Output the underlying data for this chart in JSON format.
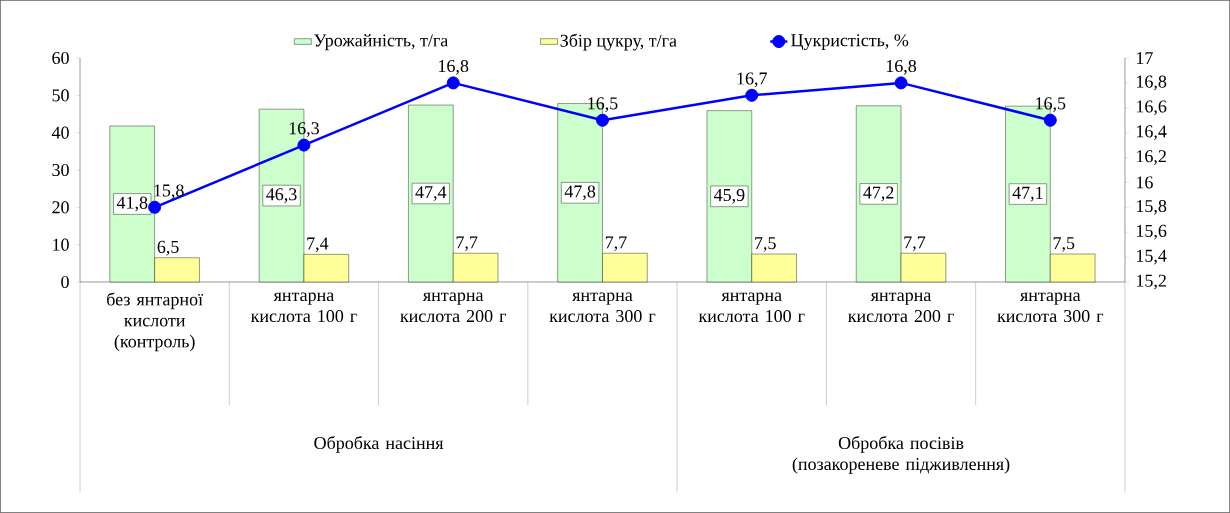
{
  "chart_data": {
    "type": "bar",
    "categories": [
      "без янтарної кислоти (контроль)",
      "янтарна кислота 100 г",
      "янтарна кислота 200 г",
      "янтарна кислота 300 г",
      "янтарна кислота 100 г",
      "янтарна кислота 200 г",
      "янтарна кислота 300 г"
    ],
    "series": [
      {
        "name": "Урожайність, т/га",
        "color": "#ccffcc",
        "values": [
          41.8,
          46.3,
          47.4,
          47.8,
          45.9,
          47.2,
          47.1
        ],
        "value_labels": [
          "41,8",
          "46,3",
          "47,4",
          "47,8",
          "45,9",
          "47,2",
          "47,1"
        ]
      },
      {
        "name": "Збір цукру, т/га",
        "color": "#ffff99",
        "values": [
          6.5,
          7.4,
          7.7,
          7.7,
          7.5,
          7.7,
          7.5
        ],
        "value_labels": [
          "6,5",
          "7,4",
          "7,7",
          "7,7",
          "7,5",
          "7,7",
          "7,5"
        ]
      },
      {
        "name": "Цукристість, %",
        "type": "line",
        "axis": "y2",
        "marker": "circle",
        "color": "#0000ff",
        "values": [
          15.8,
          16.3,
          16.8,
          16.5,
          16.7,
          16.8,
          16.5
        ],
        "value_labels": [
          "15,8",
          "16,3",
          "16,8",
          "16,5",
          "16,7",
          "16,8",
          "16,5"
        ]
      }
    ],
    "ylim": [
      0,
      60
    ],
    "yticks": [
      0,
      10,
      20,
      30,
      40,
      50,
      60
    ],
    "y2lim": [
      15.2,
      17
    ],
    "y2ticks": [
      {
        "value": 15.2,
        "label": "15,2"
      },
      {
        "value": 15.4,
        "label": "15,4"
      },
      {
        "value": 15.6,
        "label": "15,6"
      },
      {
        "value": 15.8,
        "label": "15,8"
      },
      {
        "value": 16,
        "label": "16"
      },
      {
        "value": 16.2,
        "label": "16,2"
      },
      {
        "value": 16.4,
        "label": "16,4"
      },
      {
        "value": 16.6,
        "label": "16,6"
      },
      {
        "value": 16.8,
        "label": "16,8"
      },
      {
        "value": 17,
        "label": "17"
      }
    ],
    "annotations": [
      "Обробка насіння",
      "Обробка посівів (позакореневе підживлення)"
    ],
    "legend": "top",
    "grid": false
  }
}
